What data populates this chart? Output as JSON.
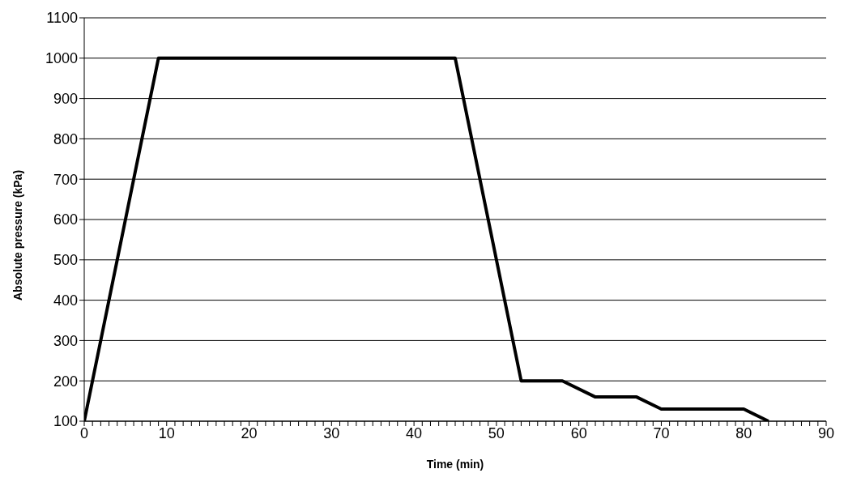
{
  "chart_data": {
    "type": "line",
    "xlabel": "Time  (min)",
    "ylabel": "Absolute  pressure  (kPa)",
    "x": [
      0,
      9,
      45,
      53,
      58,
      62,
      67,
      70,
      80,
      83
    ],
    "series": [
      {
        "color": "#000000",
        "values": [
          100,
          1000,
          1000,
          200,
          200,
          160,
          160,
          130,
          130,
          100
        ]
      }
    ],
    "xlim": [
      0,
      90
    ],
    "xticks": [
      0,
      {
        "value": 1,
        "label": null
      },
      {
        "value": 2,
        "label": null
      },
      {
        "value": 3,
        "label": null
      },
      {
        "value": 4,
        "label": null
      },
      {
        "value": 5,
        "label": null
      },
      {
        "value": 6,
        "label": null
      },
      {
        "value": 7,
        "label": null
      },
      {
        "value": 8,
        "label": null
      },
      {
        "value": 9,
        "label": null
      },
      10,
      {
        "value": 11,
        "label": null
      },
      {
        "value": 12,
        "label": null
      },
      {
        "value": 13,
        "label": null
      },
      {
        "value": 14,
        "label": null
      },
      {
        "value": 15,
        "label": null
      },
      {
        "value": 16,
        "label": null
      },
      {
        "value": 17,
        "label": null
      },
      {
        "value": 18,
        "label": null
      },
      {
        "value": 19,
        "label": null
      },
      20,
      {
        "value": 21,
        "label": null
      },
      {
        "value": 22,
        "label": null
      },
      {
        "value": 23,
        "label": null
      },
      {
        "value": 24,
        "label": null
      },
      {
        "value": 25,
        "label": null
      },
      {
        "value": 26,
        "label": null
      },
      {
        "value": 27,
        "label": null
      },
      {
        "value": 28,
        "label": null
      },
      {
        "value": 29,
        "label": null
      },
      30,
      {
        "value": 31,
        "label": null
      },
      {
        "value": 32,
        "label": null
      },
      {
        "value": 33,
        "label": null
      },
      {
        "value": 34,
        "label": null
      },
      {
        "value": 35,
        "label": null
      },
      {
        "value": 36,
        "label": null
      },
      {
        "value": 37,
        "label": null
      },
      {
        "value": 38,
        "label": null
      },
      {
        "value": 39,
        "label": null
      },
      40,
      {
        "value": 41,
        "label": null
      },
      {
        "value": 42,
        "label": null
      },
      {
        "value": 43,
        "label": null
      },
      {
        "value": 44,
        "label": null
      },
      {
        "value": 45,
        "label": null
      },
      {
        "value": 46,
        "label": null
      },
      {
        "value": 47,
        "label": null
      },
      {
        "value": 48,
        "label": null
      },
      {
        "value": 49,
        "label": null
      },
      50,
      {
        "value": 51,
        "label": null
      },
      {
        "value": 52,
        "label": null
      },
      {
        "value": 53,
        "label": null
      },
      {
        "value": 54,
        "label": null
      },
      {
        "value": 55,
        "label": null
      },
      {
        "value": 56,
        "label": null
      },
      {
        "value": 57,
        "label": null
      },
      {
        "value": 58,
        "label": null
      },
      {
        "value": 59,
        "label": null
      },
      60,
      {
        "value": 61,
        "label": null
      },
      {
        "value": 62,
        "label": null
      },
      {
        "value": 63,
        "label": null
      },
      {
        "value": 64,
        "label": null
      },
      {
        "value": 65,
        "label": null
      },
      {
        "value": 66,
        "label": null
      },
      {
        "value": 67,
        "label": null
      },
      {
        "value": 68,
        "label": null
      },
      {
        "value": 69,
        "label": null
      },
      70,
      {
        "value": 71,
        "label": null
      },
      {
        "value": 72,
        "label": null
      },
      {
        "value": 73,
        "label": null
      },
      {
        "value": 74,
        "label": null
      },
      {
        "value": 75,
        "label": null
      },
      {
        "value": 76,
        "label": null
      },
      {
        "value": 77,
        "label": null
      },
      {
        "value": 78,
        "label": null
      },
      {
        "value": 79,
        "label": null
      },
      80,
      {
        "value": 81,
        "label": null
      },
      {
        "value": 82,
        "label": null
      },
      {
        "value": 83,
        "label": null
      },
      {
        "value": 84,
        "label": null
      },
      {
        "value": 85,
        "label": null
      },
      {
        "value": 86,
        "label": null
      },
      {
        "value": 87,
        "label": null
      },
      {
        "value": 88,
        "label": null
      },
      {
        "value": 89,
        "label": null
      },
      90
    ],
    "ylim": [
      100,
      1100
    ],
    "yticks": [
      100,
      200,
      300,
      400,
      500,
      600,
      700,
      800,
      900,
      1000,
      1100
    ],
    "grid": "y",
    "marker": "none",
    "line_style": "solid",
    "legend": false
  }
}
